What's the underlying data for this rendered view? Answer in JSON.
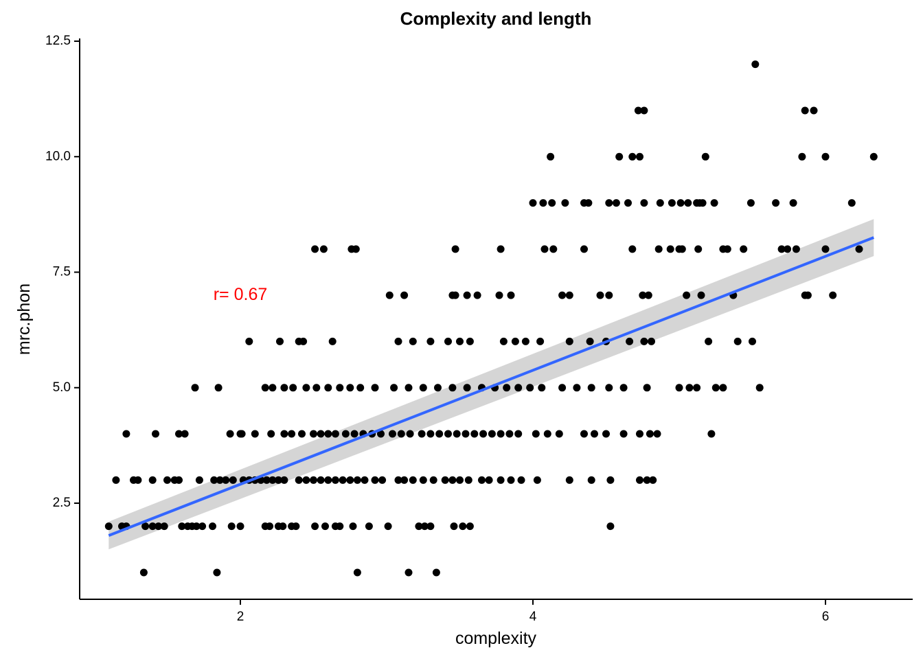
{
  "chart_data": {
    "type": "scatter",
    "title": "Complexity and length",
    "xlabel": "complexity",
    "ylabel": "mrc.phon",
    "xlim": [
      0.9,
      6.45
    ],
    "ylim": [
      0.45,
      12.5
    ],
    "x_ticks": [
      2,
      4,
      6
    ],
    "y_ticks": [
      2.5,
      5.0,
      7.5,
      10.0,
      12.5
    ],
    "x_tick_labels": [
      "2",
      "4",
      "6"
    ],
    "y_tick_labels": [
      "2.5",
      "5.0",
      "7.5",
      "10.0",
      "12.5"
    ],
    "grid": false,
    "legend": "none",
    "annotation": {
      "text": "r= 0.67",
      "x": 2.0,
      "y": 7.0,
      "color": "#FF0000"
    },
    "trend_line": {
      "x": [
        1.1,
        6.33
      ],
      "y": [
        1.8,
        8.25
      ],
      "color": "#3366FF"
    },
    "confidence_band": {
      "x": [
        1.1,
        6.33
      ],
      "lower": [
        1.5,
        7.85
      ],
      "upper": [
        2.1,
        8.65
      ],
      "color": "#BEBEBE"
    },
    "point_color": "#000000",
    "points": [
      [
        1.34,
        1
      ],
      [
        1.84,
        1
      ],
      [
        2.8,
        1
      ],
      [
        3.15,
        1
      ],
      [
        3.34,
        1
      ],
      [
        1.1,
        2
      ],
      [
        1.19,
        2
      ],
      [
        1.22,
        2
      ],
      [
        1.35,
        2
      ],
      [
        1.4,
        2
      ],
      [
        1.44,
        2
      ],
      [
        1.48,
        2
      ],
      [
        1.6,
        2
      ],
      [
        1.64,
        2
      ],
      [
        1.67,
        2
      ],
      [
        1.7,
        2
      ],
      [
        1.74,
        2
      ],
      [
        1.81,
        2
      ],
      [
        1.94,
        2
      ],
      [
        2.0,
        2
      ],
      [
        2.17,
        2
      ],
      [
        2.2,
        2
      ],
      [
        2.26,
        2
      ],
      [
        2.29,
        2
      ],
      [
        2.35,
        2
      ],
      [
        2.38,
        2
      ],
      [
        2.51,
        2
      ],
      [
        2.58,
        2
      ],
      [
        2.65,
        2
      ],
      [
        2.68,
        2
      ],
      [
        2.77,
        2
      ],
      [
        2.88,
        2
      ],
      [
        3.01,
        2
      ],
      [
        3.22,
        2
      ],
      [
        3.26,
        2
      ],
      [
        3.3,
        2
      ],
      [
        3.46,
        2
      ],
      [
        3.52,
        2
      ],
      [
        3.57,
        2
      ],
      [
        4.53,
        2
      ],
      [
        1.15,
        3
      ],
      [
        1.27,
        3
      ],
      [
        1.3,
        3
      ],
      [
        1.4,
        3
      ],
      [
        1.5,
        3
      ],
      [
        1.55,
        3
      ],
      [
        1.58,
        3
      ],
      [
        1.72,
        3
      ],
      [
        1.82,
        3
      ],
      [
        1.86,
        3
      ],
      [
        1.9,
        3
      ],
      [
        1.95,
        3
      ],
      [
        2.02,
        3
      ],
      [
        2.06,
        3
      ],
      [
        2.1,
        3
      ],
      [
        2.14,
        3
      ],
      [
        2.18,
        3
      ],
      [
        2.22,
        3
      ],
      [
        2.26,
        3
      ],
      [
        2.3,
        3
      ],
      [
        2.4,
        3
      ],
      [
        2.45,
        3
      ],
      [
        2.5,
        3
      ],
      [
        2.55,
        3
      ],
      [
        2.6,
        3
      ],
      [
        2.65,
        3
      ],
      [
        2.7,
        3
      ],
      [
        2.75,
        3
      ],
      [
        2.8,
        3
      ],
      [
        2.85,
        3
      ],
      [
        2.92,
        3
      ],
      [
        2.97,
        3
      ],
      [
        3.08,
        3
      ],
      [
        3.12,
        3
      ],
      [
        3.18,
        3
      ],
      [
        3.25,
        3
      ],
      [
        3.32,
        3
      ],
      [
        3.4,
        3
      ],
      [
        3.45,
        3
      ],
      [
        3.5,
        3
      ],
      [
        3.56,
        3
      ],
      [
        3.65,
        3
      ],
      [
        3.7,
        3
      ],
      [
        3.78,
        3
      ],
      [
        3.85,
        3
      ],
      [
        3.92,
        3
      ],
      [
        4.03,
        3
      ],
      [
        4.25,
        3
      ],
      [
        4.4,
        3
      ],
      [
        4.53,
        3
      ],
      [
        4.73,
        3
      ],
      [
        4.78,
        3
      ],
      [
        4.82,
        3
      ],
      [
        1.22,
        4
      ],
      [
        1.42,
        4
      ],
      [
        1.58,
        4
      ],
      [
        1.62,
        4
      ],
      [
        1.93,
        4
      ],
      [
        2.0,
        4
      ],
      [
        2.01,
        4
      ],
      [
        2.1,
        4
      ],
      [
        2.21,
        4
      ],
      [
        2.3,
        4
      ],
      [
        2.35,
        4
      ],
      [
        2.42,
        4
      ],
      [
        2.5,
        4
      ],
      [
        2.55,
        4
      ],
      [
        2.6,
        4
      ],
      [
        2.65,
        4
      ],
      [
        2.72,
        4
      ],
      [
        2.78,
        4
      ],
      [
        2.84,
        4
      ],
      [
        2.9,
        4
      ],
      [
        2.96,
        4
      ],
      [
        3.04,
        4
      ],
      [
        3.1,
        4
      ],
      [
        3.16,
        4
      ],
      [
        3.24,
        4
      ],
      [
        3.3,
        4
      ],
      [
        3.36,
        4
      ],
      [
        3.42,
        4
      ],
      [
        3.48,
        4
      ],
      [
        3.54,
        4
      ],
      [
        3.6,
        4
      ],
      [
        3.66,
        4
      ],
      [
        3.72,
        4
      ],
      [
        3.78,
        4
      ],
      [
        3.84,
        4
      ],
      [
        3.9,
        4
      ],
      [
        4.02,
        4
      ],
      [
        4.1,
        4
      ],
      [
        4.18,
        4
      ],
      [
        4.35,
        4
      ],
      [
        4.42,
        4
      ],
      [
        4.5,
        4
      ],
      [
        4.62,
        4
      ],
      [
        4.73,
        4
      ],
      [
        4.8,
        4
      ],
      [
        4.85,
        4
      ],
      [
        5.22,
        4
      ],
      [
        1.69,
        5
      ],
      [
        1.85,
        5
      ],
      [
        2.17,
        5
      ],
      [
        2.22,
        5
      ],
      [
        2.3,
        5
      ],
      [
        2.36,
        5
      ],
      [
        2.45,
        5
      ],
      [
        2.52,
        5
      ],
      [
        2.6,
        5
      ],
      [
        2.68,
        5
      ],
      [
        2.75,
        5
      ],
      [
        2.82,
        5
      ],
      [
        2.92,
        5
      ],
      [
        3.05,
        5
      ],
      [
        3.15,
        5
      ],
      [
        3.25,
        5
      ],
      [
        3.35,
        5
      ],
      [
        3.45,
        5
      ],
      [
        3.55,
        5
      ],
      [
        3.65,
        5
      ],
      [
        3.74,
        5
      ],
      [
        3.82,
        5
      ],
      [
        3.9,
        5
      ],
      [
        3.98,
        5
      ],
      [
        4.06,
        5
      ],
      [
        4.2,
        5
      ],
      [
        4.3,
        5
      ],
      [
        4.4,
        5
      ],
      [
        4.52,
        5
      ],
      [
        4.62,
        5
      ],
      [
        4.78,
        5
      ],
      [
        5.0,
        5
      ],
      [
        5.07,
        5
      ],
      [
        5.12,
        5
      ],
      [
        5.25,
        5
      ],
      [
        5.3,
        5
      ],
      [
        5.55,
        5
      ],
      [
        2.06,
        6
      ],
      [
        2.27,
        6
      ],
      [
        2.4,
        6
      ],
      [
        2.43,
        6
      ],
      [
        2.63,
        6
      ],
      [
        3.08,
        6
      ],
      [
        3.18,
        6
      ],
      [
        3.3,
        6
      ],
      [
        3.42,
        6
      ],
      [
        3.5,
        6
      ],
      [
        3.57,
        6
      ],
      [
        3.8,
        6
      ],
      [
        3.88,
        6
      ],
      [
        3.95,
        6
      ],
      [
        4.05,
        6
      ],
      [
        4.25,
        6
      ],
      [
        4.39,
        6
      ],
      [
        4.5,
        6
      ],
      [
        4.66,
        6
      ],
      [
        4.76,
        6
      ],
      [
        4.81,
        6
      ],
      [
        5.2,
        6
      ],
      [
        5.4,
        6
      ],
      [
        5.5,
        6
      ],
      [
        3.02,
        7
      ],
      [
        3.12,
        7
      ],
      [
        3.45,
        7
      ],
      [
        3.47,
        7
      ],
      [
        3.55,
        7
      ],
      [
        3.62,
        7
      ],
      [
        3.77,
        7
      ],
      [
        3.85,
        7
      ],
      [
        4.2,
        7
      ],
      [
        4.25,
        7
      ],
      [
        4.46,
        7
      ],
      [
        4.52,
        7
      ],
      [
        4.75,
        7
      ],
      [
        4.79,
        7
      ],
      [
        5.05,
        7
      ],
      [
        5.15,
        7
      ],
      [
        5.37,
        7
      ],
      [
        5.86,
        7
      ],
      [
        5.88,
        7
      ],
      [
        6.05,
        7
      ],
      [
        2.51,
        8
      ],
      [
        2.57,
        8
      ],
      [
        2.76,
        8
      ],
      [
        2.79,
        8
      ],
      [
        3.47,
        8
      ],
      [
        3.78,
        8
      ],
      [
        4.08,
        8
      ],
      [
        4.14,
        8
      ],
      [
        4.35,
        8
      ],
      [
        4.68,
        8
      ],
      [
        4.86,
        8
      ],
      [
        4.94,
        8
      ],
      [
        5.0,
        8
      ],
      [
        5.02,
        8
      ],
      [
        5.13,
        8
      ],
      [
        5.3,
        8
      ],
      [
        5.33,
        8
      ],
      [
        5.44,
        8
      ],
      [
        5.7,
        8
      ],
      [
        5.74,
        8
      ],
      [
        5.8,
        8
      ],
      [
        6.0,
        8
      ],
      [
        6.23,
        8
      ],
      [
        4.0,
        9
      ],
      [
        4.07,
        9
      ],
      [
        4.13,
        9
      ],
      [
        4.22,
        9
      ],
      [
        4.35,
        9
      ],
      [
        4.38,
        9
      ],
      [
        4.52,
        9
      ],
      [
        4.57,
        9
      ],
      [
        4.65,
        9
      ],
      [
        4.76,
        9
      ],
      [
        4.87,
        9
      ],
      [
        4.95,
        9
      ],
      [
        5.01,
        9
      ],
      [
        5.06,
        9
      ],
      [
        5.12,
        9
      ],
      [
        5.14,
        9
      ],
      [
        5.16,
        9
      ],
      [
        5.24,
        9
      ],
      [
        5.49,
        9
      ],
      [
        5.66,
        9
      ],
      [
        5.78,
        9
      ],
      [
        6.18,
        9
      ],
      [
        4.12,
        10
      ],
      [
        4.59,
        10
      ],
      [
        4.68,
        10
      ],
      [
        4.73,
        10
      ],
      [
        5.18,
        10
      ],
      [
        5.84,
        10
      ],
      [
        6.0,
        10
      ],
      [
        6.33,
        10
      ],
      [
        4.72,
        11
      ],
      [
        4.76,
        11
      ],
      [
        5.86,
        11
      ],
      [
        5.92,
        11
      ],
      [
        5.52,
        12
      ]
    ]
  }
}
